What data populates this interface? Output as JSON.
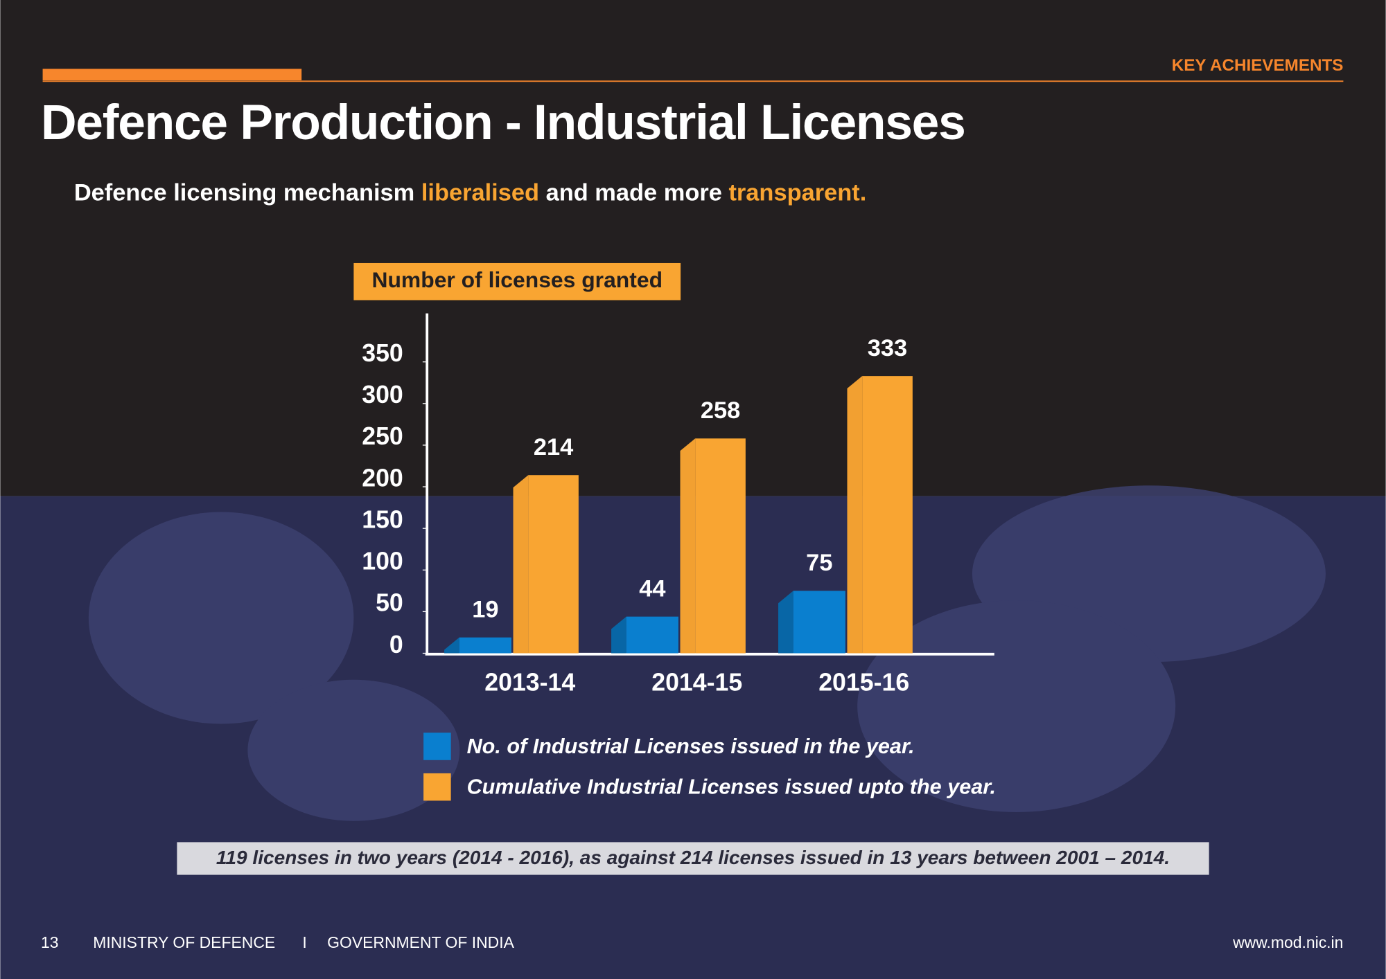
{
  "header": {
    "section": "KEY ACHIEVEMENTS",
    "title": "Defence Production - Industrial Licenses",
    "subtitle": [
      "Defence licensing mechanism ",
      "liberalised",
      " and made more ",
      "transparent."
    ]
  },
  "chart_data": {
    "type": "bar",
    "title": "Number of licenses granted",
    "categories": [
      "2013-14",
      "2014-15",
      "2015-16"
    ],
    "series": [
      {
        "name": "No. of Industrial Licenses issued in the year.",
        "color": "#0a7fcf",
        "values": [
          19,
          44,
          75
        ]
      },
      {
        "name": "Cumulative Industrial Licenses issued upto the year.",
        "color": "#f9a532",
        "values": [
          214,
          258,
          333
        ]
      }
    ],
    "ylim": [
      0,
      400
    ],
    "yticks": [
      0,
      50,
      100,
      150,
      200,
      250,
      300,
      350
    ]
  },
  "note": "119 licenses in two years (2014 - 2016), as against 214 licenses issued in 13 years between 2001 – 2014.",
  "footer": {
    "page": "13",
    "ministry": "MINISTRY OF DEFENCE",
    "separator": "I",
    "government": "GOVERNMENT OF INDIA",
    "url": "www.mod.nic.in"
  }
}
